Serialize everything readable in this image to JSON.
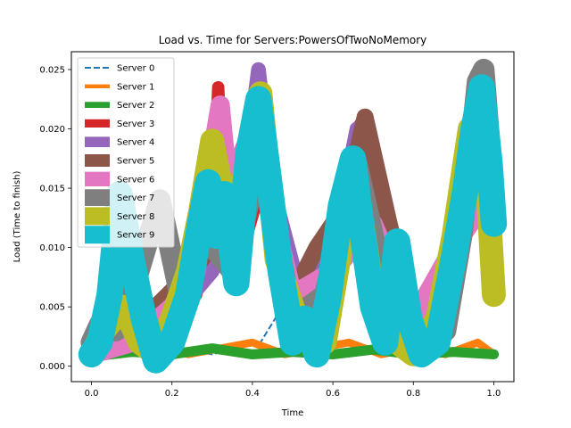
{
  "chart_data": {
    "type": "line",
    "title": "Load vs. Time for Servers:PowersOfTwoNoMemory",
    "xlabel": "Time",
    "ylabel": "Load (Time to finish)",
    "xlim": [
      -0.05,
      1.05
    ],
    "ylim": [
      -0.0013,
      0.0265
    ],
    "xticks": [
      0.0,
      0.2,
      0.4,
      0.6,
      0.8,
      1.0
    ],
    "xtick_labels": [
      "0.0",
      "0.2",
      "0.4",
      "0.6",
      "0.8",
      "1.0"
    ],
    "yticks": [
      0.0,
      0.005,
      0.01,
      0.015,
      0.02,
      0.025
    ],
    "ytick_labels": [
      "0.000",
      "0.005",
      "0.010",
      "0.015",
      "0.020",
      "0.025"
    ],
    "grid": false,
    "legend_position": "upper-left",
    "series": [
      {
        "name": "Server 0",
        "color": "#1f77b4",
        "style": "dashed",
        "x": [
          0.0,
          0.05,
          0.12,
          0.2,
          0.3,
          0.42,
          0.52,
          0.62,
          0.72,
          0.8,
          0.9,
          1.0
        ],
        "y": [
          0.0005,
          0.002,
          0.001,
          0.0015,
          0.001,
          0.002,
          0.0075,
          0.001,
          0.0015,
          0.001,
          0.0012,
          0.001
        ]
      },
      {
        "name": "Server 1",
        "color": "#ff7f0e",
        "style": "solid",
        "x": [
          0.0,
          0.08,
          0.16,
          0.24,
          0.32,
          0.4,
          0.48,
          0.56,
          0.64,
          0.72,
          0.8,
          0.88,
          0.96,
          1.0
        ],
        "y": [
          0.001,
          0.0015,
          0.002,
          0.001,
          0.0015,
          0.002,
          0.001,
          0.0015,
          0.002,
          0.001,
          0.0015,
          0.001,
          0.002,
          0.001
        ]
      },
      {
        "name": "Server 2",
        "color": "#2ca02c",
        "style": "solid",
        "x": [
          0.0,
          0.1,
          0.2,
          0.3,
          0.4,
          0.5,
          0.6,
          0.7,
          0.8,
          0.9,
          1.0
        ],
        "y": [
          0.0008,
          0.0012,
          0.001,
          0.0015,
          0.001,
          0.0012,
          0.001,
          0.0014,
          0.001,
          0.0012,
          0.001
        ]
      },
      {
        "name": "Server 3",
        "color": "#d62728",
        "style": "solid",
        "x": [
          0.0,
          0.05,
          0.12,
          0.2,
          0.26,
          0.3,
          0.315,
          0.33,
          0.36,
          0.42,
          0.48,
          0.55,
          0.6,
          0.66,
          0.68,
          0.72,
          0.8,
          0.86,
          0.9,
          0.93,
          0.96,
          1.0
        ],
        "y": [
          0.001,
          0.0015,
          0.002,
          0.003,
          0.006,
          0.012,
          0.0235,
          0.012,
          0.008,
          0.015,
          0.006,
          0.005,
          0.009,
          0.02,
          0.021,
          0.004,
          0.002,
          0.006,
          0.012,
          0.018,
          0.015,
          0.01
        ]
      },
      {
        "name": "Server 4",
        "color": "#9467bd",
        "style": "solid",
        "x": [
          0.0,
          0.1,
          0.2,
          0.3,
          0.38,
          0.415,
          0.45,
          0.52,
          0.6,
          0.66,
          0.7,
          0.78,
          0.85,
          0.87,
          0.92,
          0.97,
          1.0
        ],
        "y": [
          0.001,
          0.002,
          0.004,
          0.008,
          0.016,
          0.025,
          0.015,
          0.006,
          0.01,
          0.02,
          0.008,
          0.004,
          0.005,
          0.007,
          0.014,
          0.022,
          0.012
        ]
      },
      {
        "name": "Server 5",
        "color": "#8c564b",
        "style": "solid",
        "x": [
          0.0,
          0.08,
          0.16,
          0.25,
          0.32,
          0.42,
          0.5,
          0.56,
          0.6,
          0.64,
          0.68,
          0.74,
          0.8,
          0.88,
          0.93,
          0.97,
          1.0
        ],
        "y": [
          0.002,
          0.003,
          0.005,
          0.008,
          0.011,
          0.018,
          0.006,
          0.01,
          0.012,
          0.015,
          0.021,
          0.012,
          0.004,
          0.003,
          0.016,
          0.024,
          0.013
        ]
      },
      {
        "name": "Server 6",
        "color": "#e377c2",
        "style": "solid",
        "x": [
          0.0,
          0.1,
          0.2,
          0.26,
          0.3,
          0.32,
          0.34,
          0.4,
          0.5,
          0.6,
          0.7,
          0.8,
          0.9,
          1.0
        ],
        "y": [
          0.001,
          0.002,
          0.005,
          0.008,
          0.018,
          0.022,
          0.015,
          0.02,
          0.006,
          0.008,
          0.012,
          0.004,
          0.01,
          0.015
        ]
      },
      {
        "name": "Server 7",
        "color": "#7f7f7f",
        "style": "solid",
        "x": [
          0.0,
          0.02,
          0.06,
          0.1,
          0.17,
          0.22,
          0.28,
          0.35,
          0.42,
          0.5,
          0.58,
          0.66,
          0.72,
          0.8,
          0.88,
          0.92,
          0.96,
          0.975,
          1.0
        ],
        "y": [
          0.002,
          0.0035,
          0.003,
          0.006,
          0.014,
          0.006,
          0.011,
          0.008,
          0.018,
          0.004,
          0.006,
          0.017,
          0.008,
          0.002,
          0.003,
          0.011,
          0.024,
          0.025,
          0.014
        ]
      },
      {
        "name": "Server 8",
        "color": "#bcbd22",
        "style": "solid",
        "x": [
          0.0,
          0.03,
          0.08,
          0.12,
          0.16,
          0.2,
          0.24,
          0.27,
          0.3,
          0.34,
          0.38,
          0.42,
          0.46,
          0.52,
          0.58,
          0.62,
          0.66,
          0.7,
          0.76,
          0.8,
          0.86,
          0.9,
          0.94,
          0.98,
          1.0
        ],
        "y": [
          0.001,
          0.003,
          0.005,
          0.002,
          0.001,
          0.004,
          0.008,
          0.013,
          0.019,
          0.012,
          0.016,
          0.023,
          0.009,
          0.003,
          0.002,
          0.01,
          0.015,
          0.006,
          0.002,
          0.001,
          0.004,
          0.011,
          0.02,
          0.018,
          0.006
        ]
      },
      {
        "name": "Server 9",
        "color": "#17becf",
        "style": "solid",
        "x": [
          0.0,
          0.02,
          0.045,
          0.07,
          0.1,
          0.13,
          0.16,
          0.2,
          0.24,
          0.27,
          0.29,
          0.31,
          0.33,
          0.36,
          0.39,
          0.415,
          0.44,
          0.47,
          0.5,
          0.53,
          0.56,
          0.59,
          0.62,
          0.65,
          0.67,
          0.7,
          0.73,
          0.76,
          0.79,
          0.82,
          0.86,
          0.9,
          0.93,
          0.95,
          0.97,
          0.99,
          1.0
        ],
        "y": [
          0.001,
          0.002,
          0.006,
          0.0145,
          0.009,
          0.004,
          0.0005,
          0.002,
          0.006,
          0.012,
          0.0155,
          0.011,
          0.0145,
          0.007,
          0.018,
          0.0225,
          0.016,
          0.008,
          0.002,
          0.004,
          0.001,
          0.006,
          0.0135,
          0.0175,
          0.012,
          0.005,
          0.002,
          0.0105,
          0.004,
          0.001,
          0.002,
          0.009,
          0.015,
          0.02,
          0.0235,
          0.017,
          0.012
        ]
      }
    ]
  }
}
